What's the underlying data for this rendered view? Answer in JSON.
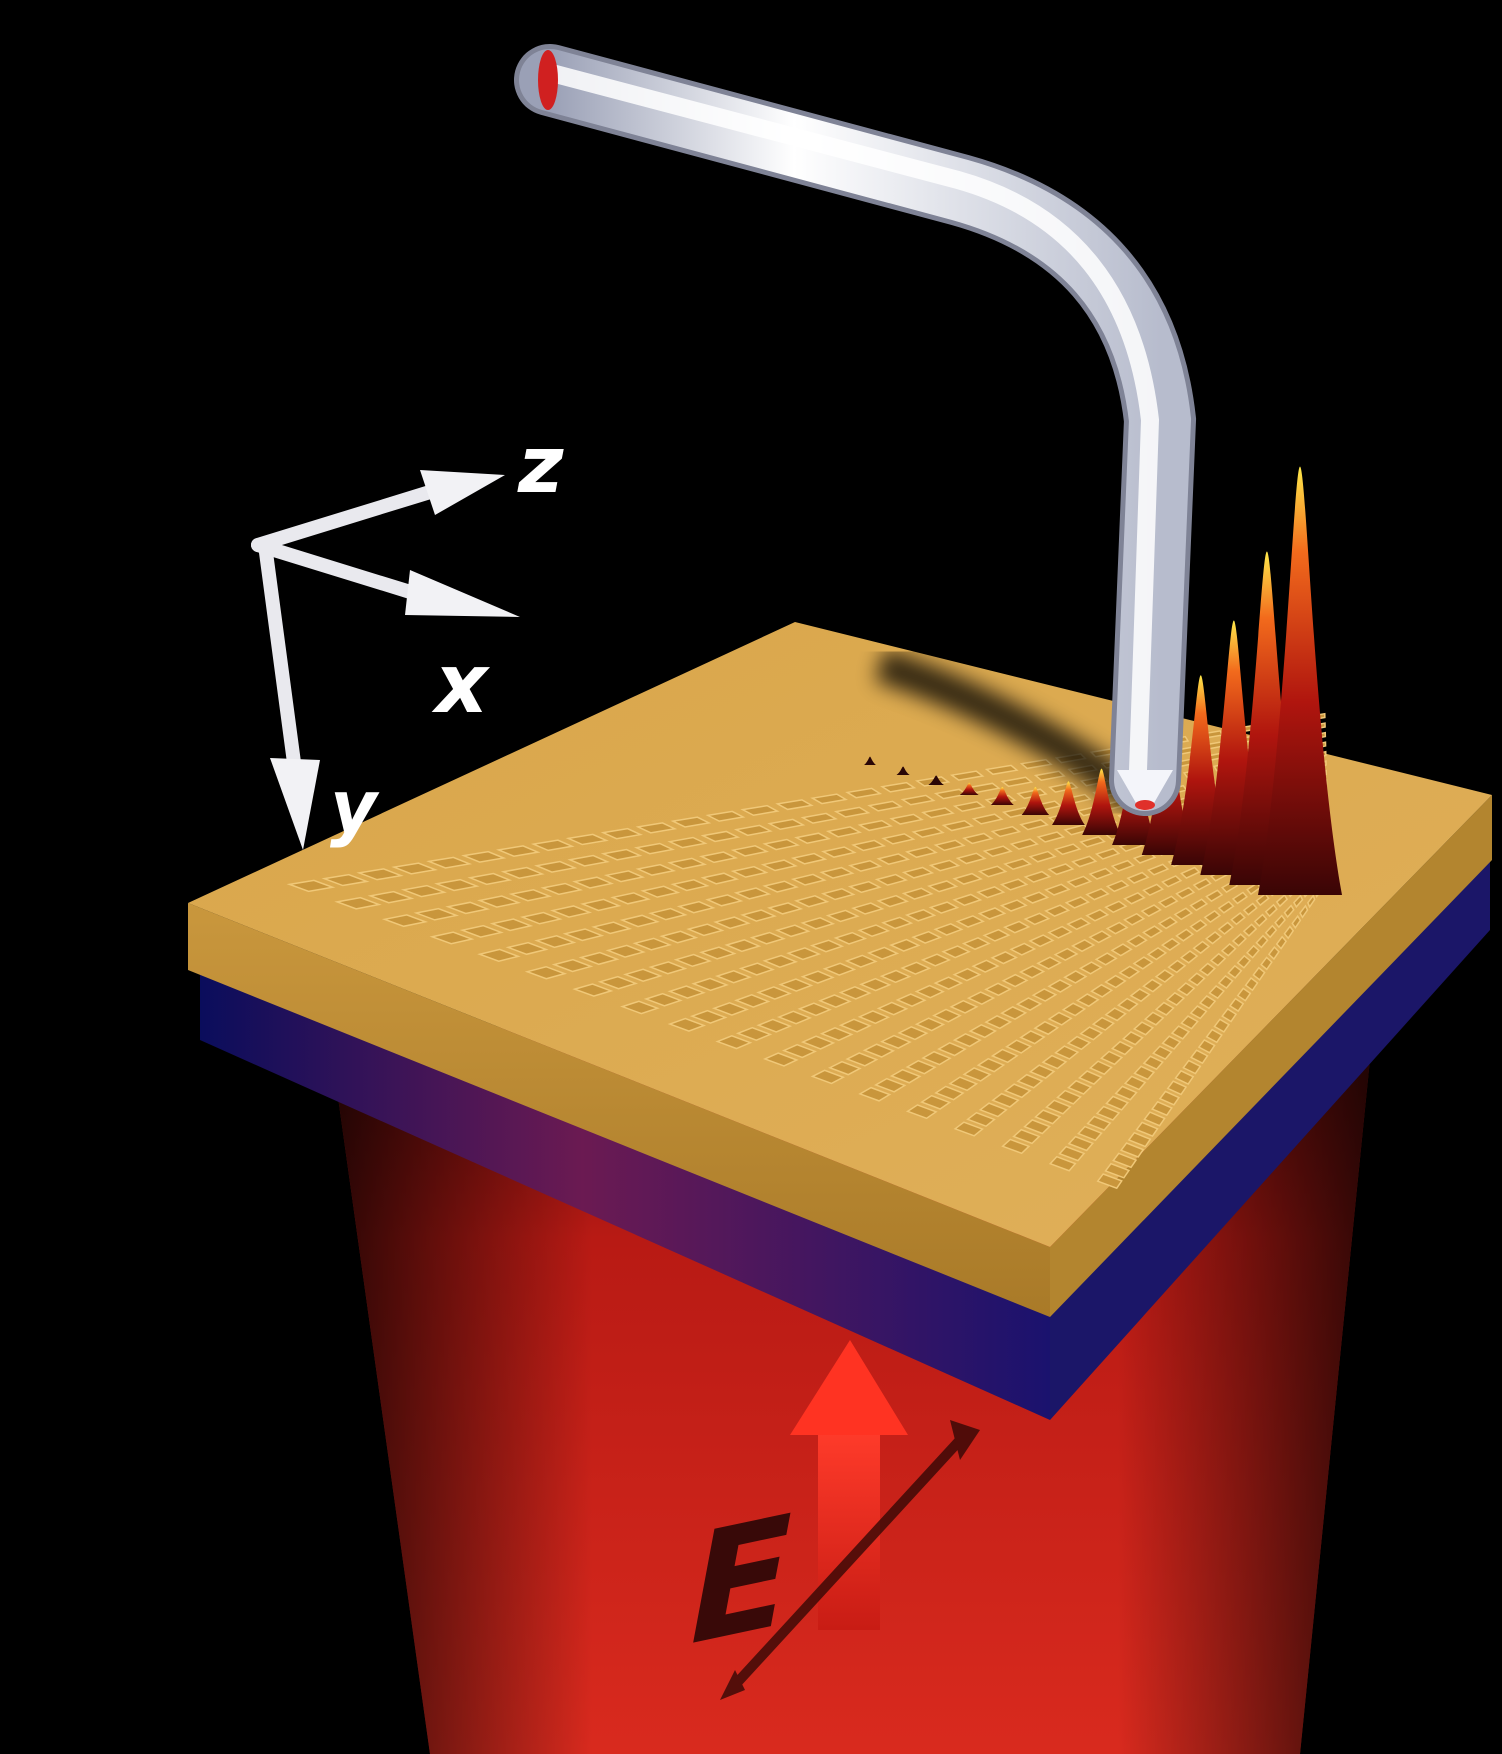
{
  "figure": {
    "description_type": "3D schematic",
    "axes": {
      "x_label": "x",
      "y_label": "y",
      "z_label": "z",
      "arrow_color": "#ffffff"
    },
    "field": {
      "label": "E",
      "arrow_color": "#e8251e"
    },
    "colors": {
      "background": "#000000",
      "gold_plate": "#d6a548",
      "gold_edge": "#b8862f",
      "substrate_blue": "#0c0f6a",
      "beam_red": "#d0201a",
      "probe": "#eef0f6"
    },
    "field_peaks": {
      "count": 14,
      "max_relative_height": 1.0
    }
  }
}
